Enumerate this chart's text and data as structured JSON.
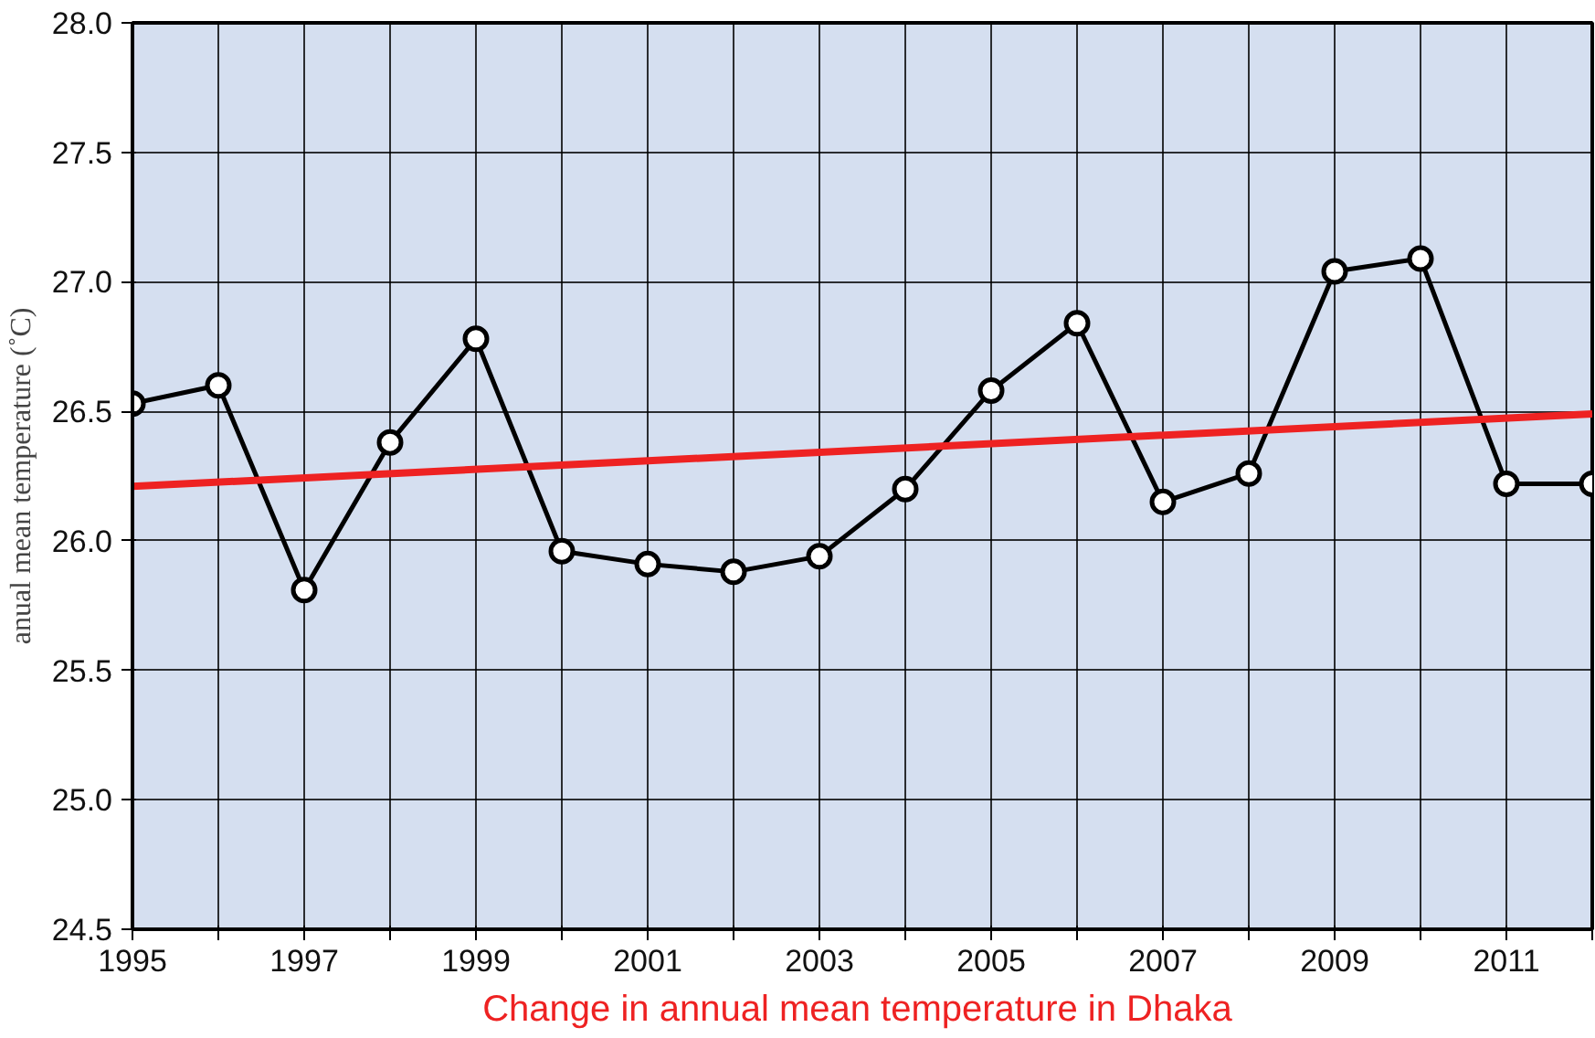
{
  "chart_data": {
    "type": "line",
    "title": "Change in annual mean  temperature in Dhaka",
    "ylabel": "anual mean temperature (˚C)",
    "x": [
      1995,
      1996,
      1997,
      1998,
      1999,
      2000,
      2001,
      2002,
      2003,
      2004,
      2005,
      2006,
      2007,
      2008,
      2009,
      2010,
      2011,
      2012
    ],
    "series": [
      {
        "color": "#000000",
        "marker": "circle",
        "values": [
          26.53,
          26.6,
          25.81,
          26.38,
          26.78,
          25.96,
          25.91,
          25.88,
          25.94,
          26.2,
          26.58,
          26.84,
          26.15,
          26.26,
          27.04,
          27.09,
          26.22,
          26.22
        ]
      },
      {
        "color": "#ee2222",
        "marker": "none",
        "x": [
          1995,
          2012
        ],
        "values": [
          26.21,
          26.49
        ]
      }
    ],
    "xlim": [
      1995,
      2012
    ],
    "ylim": [
      24.5,
      28.0
    ],
    "xticks": [
      1995,
      {
        "value": 1996,
        "label": null
      },
      1997,
      {
        "value": 1998,
        "label": null
      },
      1999,
      {
        "value": 2000,
        "label": null
      },
      2001,
      {
        "value": 2002,
        "label": null
      },
      2003,
      {
        "value": 2004,
        "label": null
      },
      2005,
      {
        "value": 2006,
        "label": null
      },
      2007,
      {
        "value": 2008,
        "label": null
      },
      2009,
      {
        "value": 2010,
        "label": null
      },
      2011,
      {
        "value": 2012,
        "label": null
      }
    ],
    "yticks": [
      {
        "value": 24.5,
        "label": "24.5"
      },
      {
        "value": 25.0,
        "label": "25.0"
      },
      {
        "value": 25.5,
        "label": "25.5"
      },
      {
        "value": 26.0,
        "label": "26.0"
      },
      {
        "value": 26.5,
        "label": "26.5"
      },
      {
        "value": 27.0,
        "label": "27.0"
      },
      {
        "value": 27.5,
        "label": "27.5"
      },
      {
        "value": 28.0,
        "label": "28.0"
      }
    ],
    "grid": true
  }
}
